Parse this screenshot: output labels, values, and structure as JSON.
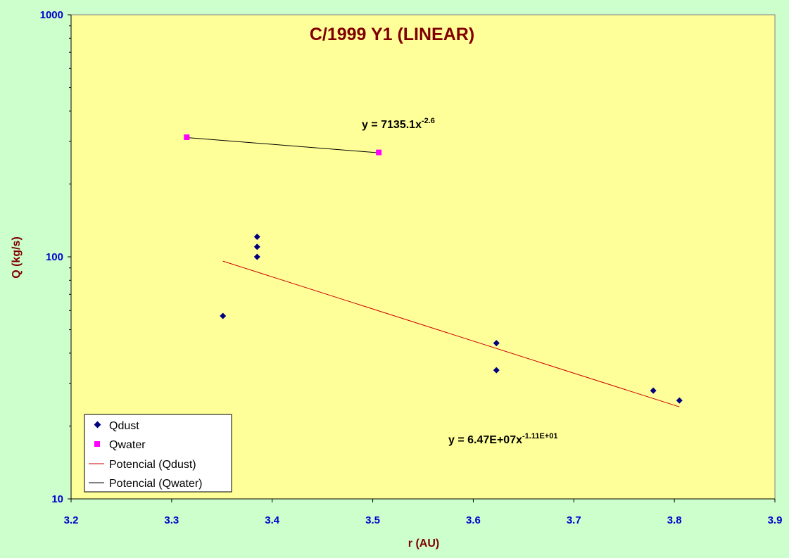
{
  "chart_data": {
    "type": "scatter",
    "title": "C/1999 Y1 (LINEAR)",
    "xlabel": "r (AU)",
    "ylabel": "Q (kg/s)",
    "xlim": [
      3.2,
      3.9
    ],
    "ylim": [
      10,
      1000
    ],
    "yscale": "log",
    "x_ticks": [
      "3.2",
      "3.3",
      "3.4",
      "3.5",
      "3.6",
      "3.7",
      "3.8",
      "3.9"
    ],
    "y_ticks": [
      "10",
      "100",
      "1000"
    ],
    "grid": false,
    "legend_position": "bottom-left",
    "series": [
      {
        "name": "Qdust",
        "marker": "diamond",
        "color": "#000080",
        "points": [
          {
            "x": 3.351,
            "y": 57
          },
          {
            "x": 3.385,
            "y": 100
          },
          {
            "x": 3.385,
            "y": 110
          },
          {
            "x": 3.385,
            "y": 121
          },
          {
            "x": 3.623,
            "y": 44
          },
          {
            "x": 3.623,
            "y": 34
          },
          {
            "x": 3.779,
            "y": 28
          },
          {
            "x": 3.805,
            "y": 25.5
          }
        ]
      },
      {
        "name": "Qwater",
        "marker": "square",
        "color": "#ff00ff",
        "points": [
          {
            "x": 3.315,
            "y": 312
          },
          {
            "x": 3.506,
            "y": 270
          }
        ]
      }
    ],
    "trendlines": [
      {
        "name": "Potencial (Qdust)",
        "color": "#cc0000",
        "start": {
          "x": 3.351,
          "y": 96
        },
        "end": {
          "x": 3.805,
          "y": 24
        },
        "equation_main": "y = 6.47E+07x",
        "equation_exp": "-1.11E+01"
      },
      {
        "name": "Potencial (Qwater)",
        "color": "#000000",
        "start": {
          "x": 3.315,
          "y": 311
        },
        "end": {
          "x": 3.506,
          "y": 269
        },
        "equation_main": "y = 7135.1x",
        "equation_exp": "-2.6"
      }
    ]
  },
  "colors": {
    "page_background": "#ccffcc",
    "plot_background": "#ffff99",
    "tick_color": "#0000cc",
    "title_color": "#800000"
  }
}
